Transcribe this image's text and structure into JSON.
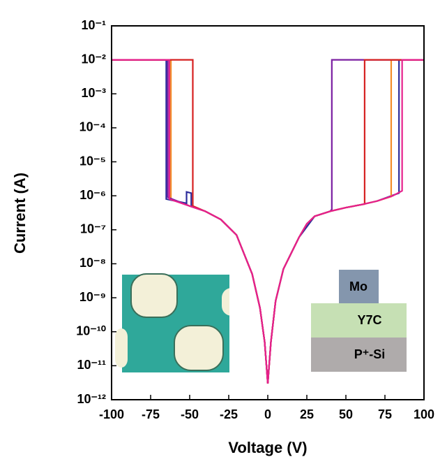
{
  "chart_data": {
    "type": "line",
    "log_y": true,
    "x_label": "Voltage (V)",
    "y_label": "Current (A)",
    "annotations": [
      "Mo",
      "Y7C",
      "P⁺-Si"
    ],
    "xlim": [
      -100,
      100
    ],
    "xticks": [
      -100,
      -75,
      -50,
      -25,
      0,
      25,
      50,
      75,
      100
    ],
    "ylim": [
      1e-12,
      0.1
    ],
    "yticks": [
      {
        "value": 1e-12,
        "label": "10⁻¹²"
      },
      {
        "value": 1e-11,
        "label": "10⁻¹¹"
      },
      {
        "value": 1e-10,
        "label": "10⁻¹⁰"
      },
      {
        "value": 1e-09,
        "label": "10⁻⁹"
      },
      {
        "value": 1e-08,
        "label": "10⁻⁸"
      },
      {
        "value": 1e-07,
        "label": "10⁻⁷"
      },
      {
        "value": 1e-06,
        "label": "10⁻⁶"
      },
      {
        "value": 1e-05,
        "label": "10⁻⁵"
      },
      {
        "value": 0.0001,
        "label": "10⁻⁴"
      },
      {
        "value": 0.001,
        "label": "10⁻³"
      },
      {
        "value": 0.01,
        "label": "10⁻²"
      },
      {
        "value": 0.1,
        "label": "10⁻¹"
      }
    ],
    "series": [
      {
        "color": "#2b2b9b",
        "x": [
          -100,
          -65,
          -65,
          -52,
          -52,
          -49,
          -49,
          -40,
          -30,
          -20,
          -10,
          -5,
          -2,
          0,
          2,
          5,
          10,
          20,
          30,
          40,
          50,
          60,
          70,
          84,
          84,
          100
        ],
        "values": [
          0.01,
          0.01,
          8e-07,
          6e-07,
          1.3e-06,
          1.2e-06,
          5e-07,
          3.5e-07,
          2e-07,
          7e-08,
          5e-09,
          5e-10,
          5e-11,
          3e-12,
          5e-11,
          8e-10,
          7e-09,
          6e-08,
          2.5e-07,
          3.5e-07,
          4.5e-07,
          5.5e-07,
          7e-07,
          1.2e-06,
          0.01,
          0.01
        ]
      },
      {
        "color": "#f28c28",
        "x": [
          -100,
          -62,
          -62,
          -50,
          -40,
          -30,
          -20,
          -10,
          -5,
          -2,
          0,
          2,
          5,
          10,
          20,
          25,
          30,
          40,
          50,
          60,
          70,
          79,
          79,
          100
        ],
        "values": [
          0.01,
          0.01,
          8e-07,
          5e-07,
          3.5e-07,
          2e-07,
          7e-08,
          5e-09,
          5e-10,
          5e-11,
          3e-12,
          5e-11,
          8e-10,
          7e-09,
          6e-08,
          1.5e-07,
          2.5e-07,
          3.5e-07,
          4.5e-07,
          5.5e-07,
          7e-07,
          9.5e-07,
          0.01,
          0.01
        ]
      },
      {
        "color": "#7b1fa2",
        "x": [
          -100,
          -64,
          -64,
          -50,
          -40,
          -30,
          -20,
          -10,
          -5,
          -2,
          0,
          2,
          5,
          10,
          20,
          25,
          30,
          40,
          41,
          41,
          100
        ],
        "values": [
          0.01,
          0.01,
          9e-07,
          5e-07,
          3.5e-07,
          2e-07,
          7e-08,
          5e-09,
          5e-10,
          5e-11,
          3e-12,
          5e-11,
          8e-10,
          7e-09,
          6e-08,
          1.5e-07,
          2.5e-07,
          3.5e-07,
          4e-07,
          0.01,
          0.01
        ]
      },
      {
        "color": "#d62020",
        "x": [
          -100,
          -48,
          -48,
          -40,
          -30,
          -20,
          -10,
          -5,
          -2,
          0,
          2,
          5,
          10,
          20,
          25,
          30,
          40,
          50,
          60,
          62,
          62,
          100
        ],
        "values": [
          0.01,
          0.01,
          5e-07,
          3.5e-07,
          2e-07,
          7e-08,
          5e-09,
          5e-10,
          5e-11,
          3e-12,
          5e-11,
          8e-10,
          7e-09,
          6e-08,
          1.5e-07,
          2.5e-07,
          3.5e-07,
          4.5e-07,
          5.5e-07,
          5.7e-07,
          0.01,
          0.01
        ]
      },
      {
        "color": "#e6208c",
        "x": [
          -100,
          -63,
          -63,
          -50,
          -40,
          -30,
          -20,
          -10,
          -5,
          -2,
          0,
          2,
          5,
          10,
          20,
          25,
          30,
          40,
          50,
          60,
          70,
          80,
          86,
          86,
          100
        ],
        "values": [
          0.01,
          0.01,
          8e-07,
          5e-07,
          3.5e-07,
          2e-07,
          7e-08,
          5e-09,
          5e-10,
          5e-11,
          3e-12,
          5e-11,
          8e-10,
          7e-09,
          6e-08,
          1.5e-07,
          2.5e-07,
          3.5e-07,
          4.5e-07,
          5.5e-07,
          7e-07,
          1e-06,
          1.4e-06,
          0.01,
          0.01
        ]
      }
    ]
  }
}
